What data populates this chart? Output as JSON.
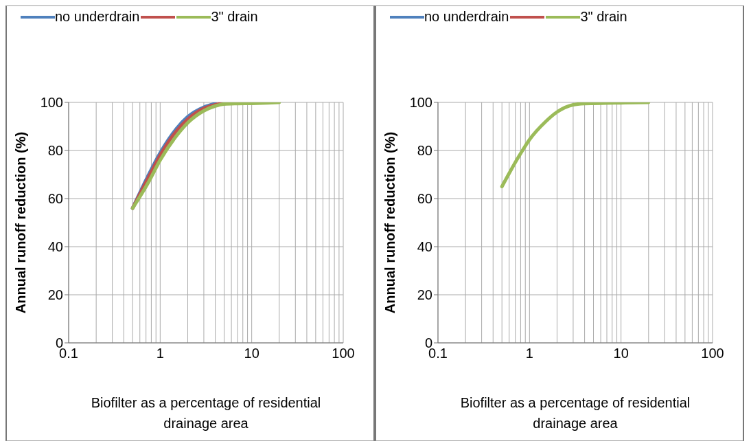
{
  "chart_data": [
    {
      "type": "line",
      "legend": "top left",
      "grid": true,
      "log": "x",
      "marker": "none",
      "line_style": "solid",
      "ylabel": "Annual runoff reduction (%)",
      "xlabel": "Biofilter as a percentage of residential drainage area",
      "xlim": [
        0.1,
        100
      ],
      "ylim": [
        0,
        100
      ],
      "yticks": [
        0,
        20,
        40,
        60,
        80,
        100
      ],
      "xticks": [
        0.1,
        {
          "value": 0.2,
          "label": null
        },
        {
          "value": 0.3,
          "label": null
        },
        {
          "value": 0.4,
          "label": null
        },
        {
          "value": 0.5,
          "label": null
        },
        {
          "value": 0.6,
          "label": null
        },
        {
          "value": 0.7,
          "label": null
        },
        {
          "value": 0.8,
          "label": null
        },
        {
          "value": 0.9,
          "label": null
        },
        1,
        {
          "value": 2,
          "label": null
        },
        {
          "value": 3,
          "label": null
        },
        {
          "value": 4,
          "label": null
        },
        {
          "value": 5,
          "label": null
        },
        {
          "value": 6,
          "label": null
        },
        {
          "value": 7,
          "label": null
        },
        {
          "value": 8,
          "label": null
        },
        {
          "value": 9,
          "label": null
        },
        10,
        {
          "value": 20,
          "label": null
        },
        {
          "value": 30,
          "label": null
        },
        {
          "value": 40,
          "label": null
        },
        {
          "value": 50,
          "label": null
        },
        {
          "value": 60,
          "label": null
        },
        {
          "value": 70,
          "label": null
        },
        {
          "value": 80,
          "label": null
        },
        {
          "value": 90,
          "label": null
        },
        100
      ],
      "x": [
        0.5,
        0.75,
        1,
        1.5,
        2,
        3,
        4,
        5,
        7,
        10,
        15,
        20
      ],
      "series": [
        {
          "name": "no underdrain",
          "color": "#4f81bd",
          "values": [
            56,
            70,
            79,
            89,
            94,
            98,
            99.5,
            null,
            null,
            null,
            null,
            null
          ]
        },
        {
          "color": "#c0504d",
          "values": [
            56,
            69,
            78,
            88,
            93,
            97.5,
            99,
            99.7,
            null,
            null,
            null,
            null
          ]
        },
        {
          "name": "3\" drain",
          "color": "#9bbb59",
          "values": [
            56,
            67,
            76,
            86,
            91.5,
            96.5,
            98.5,
            99.3,
            99.5,
            99.6,
            99.8,
            100
          ]
        }
      ]
    },
    {
      "type": "line",
      "legend": "top left",
      "grid": true,
      "log": "x",
      "marker": "none",
      "line_style": "solid",
      "ylabel": "Annual runoff reduction (%)",
      "xlabel": "Biofilter as a percentage of residential drainage area",
      "xlim": [
        0.1,
        100
      ],
      "ylim": [
        0,
        100
      ],
      "yticks": [
        0,
        20,
        40,
        60,
        80,
        100
      ],
      "xticks": [
        0.1,
        {
          "value": 0.2,
          "label": null
        },
        {
          "value": 0.3,
          "label": null
        },
        {
          "value": 0.4,
          "label": null
        },
        {
          "value": 0.5,
          "label": null
        },
        {
          "value": 0.6,
          "label": null
        },
        {
          "value": 0.7,
          "label": null
        },
        {
          "value": 0.8,
          "label": null
        },
        {
          "value": 0.9,
          "label": null
        },
        1,
        {
          "value": 2,
          "label": null
        },
        {
          "value": 3,
          "label": null
        },
        {
          "value": 4,
          "label": null
        },
        {
          "value": 5,
          "label": null
        },
        {
          "value": 6,
          "label": null
        },
        {
          "value": 7,
          "label": null
        },
        {
          "value": 8,
          "label": null
        },
        {
          "value": 9,
          "label": null
        },
        10,
        {
          "value": 20,
          "label": null
        },
        {
          "value": 30,
          "label": null
        },
        {
          "value": 40,
          "label": null
        },
        {
          "value": 50,
          "label": null
        },
        {
          "value": 60,
          "label": null
        },
        {
          "value": 70,
          "label": null
        },
        {
          "value": 80,
          "label": null
        },
        {
          "value": 90,
          "label": null
        },
        100
      ],
      "x": [
        0.5,
        0.75,
        1,
        1.5,
        2,
        3,
        4,
        5,
        7,
        10,
        15,
        20
      ],
      "series": [
        {
          "name": "no underdrain",
          "color": "#4f81bd",
          "values": [
            null,
            null,
            null,
            null,
            null,
            null,
            null,
            null,
            null,
            null,
            null,
            null
          ]
        },
        {
          "color": "#c0504d",
          "values": [
            null,
            null,
            null,
            null,
            null,
            null,
            null,
            null,
            null,
            null,
            null,
            null
          ]
        },
        {
          "name": "3\" drain",
          "color": "#9bbb59",
          "values": [
            65,
            77,
            84.5,
            92,
            96,
            99,
            99.5,
            99.6,
            99.7,
            99.8,
            99.9,
            100
          ]
        }
      ]
    }
  ]
}
